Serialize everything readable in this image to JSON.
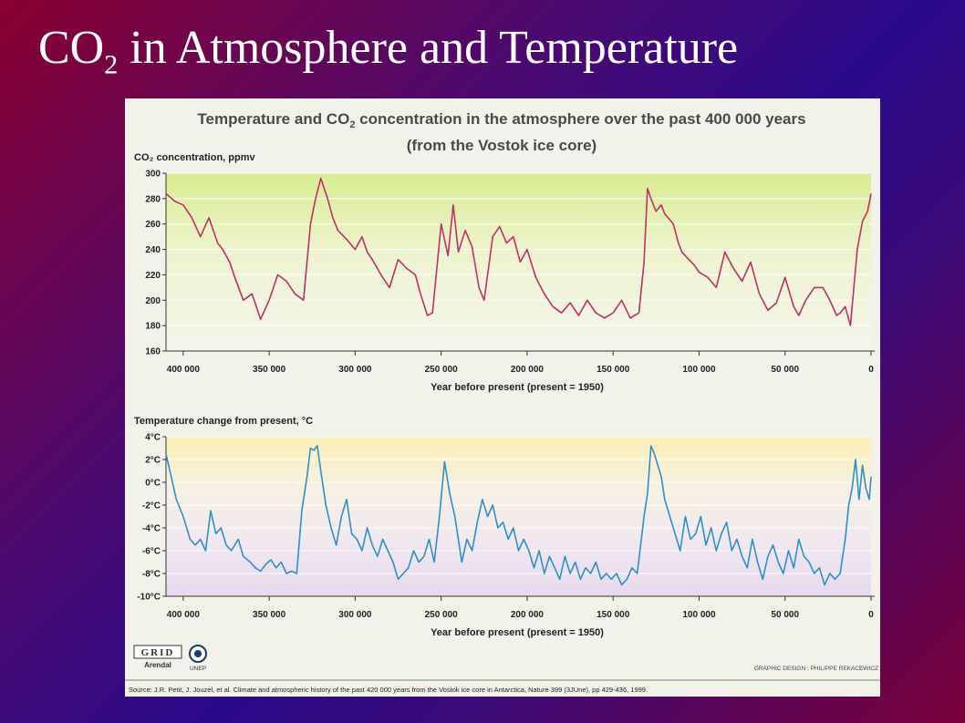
{
  "slide": {
    "title_main": "CO",
    "title_sub": "2",
    "title_rest": " in Atmosphere and Temperature"
  },
  "figure": {
    "title_line1_a": "Temperature and CO",
    "title_line1_sub": "2",
    "title_line1_b": " concentration in the atmosphere over the past 400 000 years",
    "title_line2": "(from the Vostok ice core)",
    "graphic_credit": "GRAPHIC DESIGN : PHILIPPE REKACEWICZ",
    "source": "Source: J.R. Petit, J. Jouzel, et al. Climate and atmospheric history of the past 420 000 years from the Vostok ice core in Antarctica, Nature 399 (3JUne), pp 429-436, 1999.",
    "logo_grid_top": "GRID",
    "logo_grid_bottom": "Arendal",
    "logo_unep": "UNEP",
    "colors": {
      "co2_line": "#c0306a",
      "temp_line": "#2f8fc9",
      "background": "#f3f2ea"
    }
  },
  "chart_data": [
    {
      "type": "line",
      "ylabel": "CO₂ concentration, ppmv",
      "xlabel": "Year before present (present = 1950)",
      "xlim": [
        410000,
        0
      ],
      "ylim": [
        160,
        300
      ],
      "x_ticks": [
        400000,
        350000,
        300000,
        250000,
        200000,
        150000,
        100000,
        50000,
        0
      ],
      "x_tick_labels": [
        "400 000",
        "350 000",
        "300 000",
        "250 000",
        "200 000",
        "150 000",
        "100 000",
        "50 000",
        "0"
      ],
      "y_ticks": [
        160,
        180,
        200,
        220,
        240,
        260,
        280,
        300
      ],
      "grid": true,
      "series": [
        {
          "x": [
            410000,
            405000,
            400000,
            395000,
            390000,
            385000,
            380000,
            377000,
            373000,
            370000,
            365000,
            360000,
            355000,
            350000,
            345000,
            340000,
            335000,
            330000,
            326000,
            323000,
            320000,
            316000,
            313000,
            310000,
            305000,
            300000,
            296000,
            293000,
            290000,
            285000,
            280000,
            275000,
            270000,
            265000,
            262000,
            258000,
            255000,
            250000,
            246000,
            243000,
            240000,
            236000,
            232000,
            228000,
            225000,
            220000,
            216000,
            212000,
            208000,
            204000,
            200000,
            195000,
            190000,
            185000,
            180000,
            175000,
            170000,
            165000,
            160000,
            155000,
            150000,
            145000,
            140000,
            135000,
            132000,
            130000,
            128000,
            125000,
            122000,
            120000,
            118000,
            115000,
            112000,
            110000,
            106000,
            103000,
            100000,
            95000,
            90000,
            85000,
            80000,
            75000,
            70000,
            65000,
            60000,
            55000,
            50000,
            45000,
            42000,
            38000,
            33000,
            28000,
            24000,
            20000,
            18000,
            15000,
            12000,
            8000,
            5000,
            2000,
            0
          ],
          "y": [
            284,
            278,
            275,
            265,
            250,
            265,
            245,
            240,
            230,
            218,
            200,
            205,
            185,
            200,
            220,
            215,
            205,
            200,
            260,
            280,
            296,
            280,
            265,
            255,
            248,
            240,
            250,
            238,
            232,
            220,
            210,
            232,
            225,
            220,
            205,
            188,
            190,
            260,
            235,
            275,
            238,
            255,
            242,
            210,
            200,
            250,
            258,
            245,
            250,
            230,
            240,
            218,
            205,
            195,
            190,
            198,
            188,
            200,
            190,
            186,
            190,
            200,
            186,
            190,
            230,
            288,
            280,
            270,
            275,
            268,
            265,
            260,
            245,
            238,
            232,
            228,
            222,
            218,
            210,
            238,
            225,
            215,
            230,
            205,
            192,
            198,
            218,
            195,
            188,
            200,
            210,
            210,
            200,
            188,
            190,
            195,
            180,
            240,
            262,
            270,
            284
          ]
        }
      ]
    },
    {
      "type": "line",
      "ylabel": "Temperature change from present, °C",
      "xlabel": "Year before present (present = 1950)",
      "xlim": [
        410000,
        0
      ],
      "ylim": [
        -10,
        4
      ],
      "x_ticks": [
        400000,
        350000,
        300000,
        250000,
        200000,
        150000,
        100000,
        50000,
        0
      ],
      "x_tick_labels": [
        "400 000",
        "350 000",
        "300 000",
        "250 000",
        "200 000",
        "150 000",
        "100 000",
        "50 000",
        "0"
      ],
      "y_ticks": [
        4,
        2,
        0,
        -2,
        -4,
        -6,
        -8,
        -10
      ],
      "y_tick_labels": [
        "4°C",
        "2°C",
        "0°C",
        "-2°C",
        "-4°C",
        "-6°C",
        "-8°C",
        "-10°C"
      ],
      "grid": true,
      "series": [
        {
          "x": [
            410000,
            407000,
            404000,
            400000,
            396000,
            393000,
            390000,
            387000,
            384000,
            381000,
            378000,
            375000,
            372000,
            368000,
            365000,
            361000,
            358000,
            355000,
            352000,
            349000,
            346000,
            343000,
            340000,
            337000,
            334000,
            331000,
            328000,
            326000,
            324000,
            322000,
            320000,
            317000,
            314000,
            311000,
            308000,
            305000,
            302000,
            299000,
            296000,
            293000,
            290000,
            287000,
            284000,
            281000,
            278000,
            275000,
            272000,
            269000,
            266000,
            263000,
            260000,
            257000,
            254000,
            251000,
            248000,
            245000,
            242000,
            240000,
            238000,
            235000,
            232000,
            229000,
            226000,
            223000,
            220000,
            217000,
            214000,
            211000,
            208000,
            205000,
            202000,
            199000,
            196000,
            193000,
            190000,
            187000,
            184000,
            181000,
            178000,
            175000,
            172000,
            169000,
            166000,
            163000,
            160000,
            157000,
            154000,
            151000,
            148000,
            145000,
            142000,
            139000,
            136000,
            134000,
            132000,
            130000,
            128000,
            126000,
            124000,
            122000,
            120000,
            117000,
            114000,
            111000,
            108000,
            105000,
            102000,
            99000,
            96000,
            93000,
            90000,
            87000,
            84000,
            81000,
            78000,
            75000,
            72000,
            69000,
            66000,
            63000,
            60000,
            57000,
            54000,
            51000,
            48000,
            45000,
            42000,
            39000,
            36000,
            33000,
            30000,
            27000,
            24000,
            21000,
            18000,
            15000,
            13000,
            11000,
            9000,
            7000,
            5000,
            3000,
            1000,
            0
          ],
          "y": [
            2.5,
            0.5,
            -1.5,
            -3.0,
            -5.0,
            -5.5,
            -5.0,
            -6.0,
            -2.5,
            -4.5,
            -4.0,
            -5.5,
            -6.0,
            -5.0,
            -6.5,
            -7.0,
            -7.5,
            -7.8,
            -7.2,
            -6.8,
            -7.5,
            -7.0,
            -8.0,
            -7.8,
            -8.0,
            -2.5,
            0.5,
            3.0,
            2.8,
            3.2,
            1.0,
            -2.0,
            -4.0,
            -5.5,
            -3.0,
            -1.5,
            -4.5,
            -5.0,
            -6.0,
            -4.0,
            -5.5,
            -6.5,
            -5.0,
            -6.0,
            -7.0,
            -8.5,
            -8.0,
            -7.5,
            -6.0,
            -7.0,
            -6.5,
            -5.0,
            -7.0,
            -3.0,
            1.8,
            -1.0,
            -3.0,
            -5.0,
            -7.0,
            -5.0,
            -6.0,
            -3.5,
            -1.5,
            -3.0,
            -2.0,
            -4.0,
            -3.5,
            -5.0,
            -4.0,
            -6.0,
            -5.0,
            -6.0,
            -7.5,
            -6.0,
            -8.0,
            -6.5,
            -7.5,
            -8.5,
            -6.5,
            -8.0,
            -7.0,
            -8.5,
            -7.5,
            -8.0,
            -7.0,
            -8.5,
            -8.0,
            -8.5,
            -8.0,
            -9.0,
            -8.5,
            -7.5,
            -8.0,
            -5.5,
            -3.0,
            -1.0,
            3.2,
            2.5,
            1.5,
            0.5,
            -1.5,
            -3.0,
            -4.5,
            -6.0,
            -3.0,
            -5.0,
            -4.5,
            -3.0,
            -5.5,
            -4.0,
            -6.0,
            -4.5,
            -3.5,
            -6.0,
            -5.0,
            -6.5,
            -7.5,
            -5.0,
            -7.0,
            -8.5,
            -6.5,
            -5.5,
            -7.0,
            -8.0,
            -6.0,
            -7.5,
            -5.0,
            -6.5,
            -7.0,
            -8.0,
            -7.5,
            -9.0,
            -8.0,
            -8.5,
            -8.0,
            -5.0,
            -2.0,
            -0.5,
            2.0,
            -1.5,
            1.5,
            -0.5,
            -1.5,
            0.5
          ]
        }
      ]
    }
  ]
}
